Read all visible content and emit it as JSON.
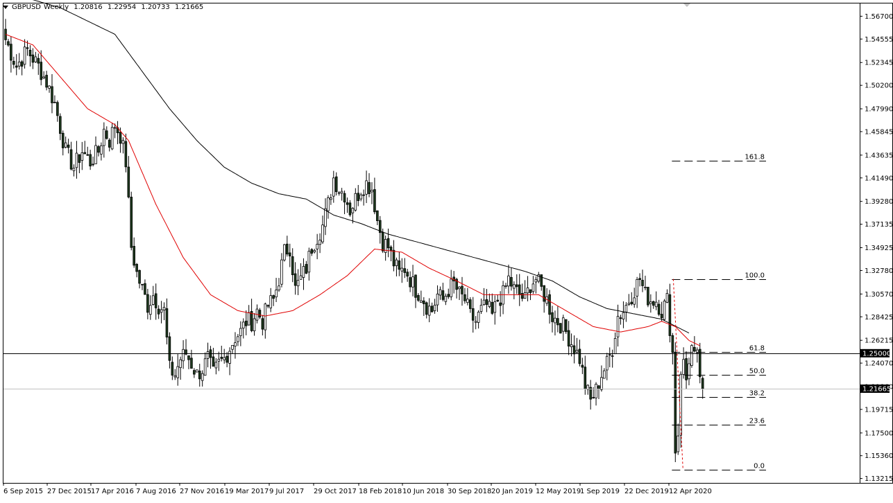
{
  "header": {
    "symbol": "GBPUSD",
    "timeframe": "Weekly",
    "open": "1.20816",
    "high": "1.22954",
    "low": "1.20733",
    "close": "1.21665"
  },
  "colors": {
    "background": "#ffffff",
    "candle_bull": "#ffffff",
    "candle_bear": "#1e3a1e",
    "ma_long": "#000000",
    "ma_short": "#e00000",
    "fib_lines": "#000000",
    "price_line": "#000000",
    "bid_line": "#c0c0c0"
  },
  "chart_data": {
    "type": "candlestick",
    "symbol": "GBPUSD",
    "timeframe": "Weekly",
    "ylim": [
      1.128,
      1.579
    ],
    "y_ticks": [
      "1.56700",
      "1.54555",
      "1.52345",
      "1.50200",
      "1.47990",
      "1.45845",
      "1.43635",
      "1.41490",
      "1.39280",
      "1.37135",
      "1.34925",
      "1.32780",
      "1.30570",
      "1.28425",
      "1.26215",
      "1.24070",
      "1.21860",
      "1.19715",
      "1.17500",
      "1.15360",
      "1.13215"
    ],
    "x_ticks": [
      "6 Sep 2015",
      "27 Dec 2015",
      "17 Apr 2016",
      "7 Aug 2016",
      "27 Nov 2016",
      "19 Mar 2017",
      "9 Jul 2017",
      "29 Oct 2017",
      "18 Feb 2018",
      "10 Jun 2018",
      "30 Sep 2018",
      "20 Jan 2019",
      "12 May 2019",
      "1 Sep 2019",
      "22 Dec 2019",
      "12 Apr 2020"
    ],
    "close_path": [
      [
        0,
        1.545
      ],
      [
        4,
        1.52
      ],
      [
        8,
        1.535
      ],
      [
        12,
        1.52
      ],
      [
        15,
        1.505
      ],
      [
        18,
        1.485
      ],
      [
        22,
        1.44
      ],
      [
        25,
        1.425
      ],
      [
        28,
        1.44
      ],
      [
        31,
        1.43
      ],
      [
        34,
        1.44
      ],
      [
        36,
        1.46
      ],
      [
        38,
        1.45
      ],
      [
        40,
        1.465
      ],
      [
        42,
        1.455
      ],
      [
        44,
        1.43
      ],
      [
        46,
        1.35
      ],
      [
        48,
        1.325
      ],
      [
        50,
        1.31
      ],
      [
        52,
        1.295
      ],
      [
        54,
        1.305
      ],
      [
        56,
        1.295
      ],
      [
        58,
        1.29
      ],
      [
        60,
        1.235
      ],
      [
        62,
        1.23
      ],
      [
        64,
        1.245
      ],
      [
        66,
        1.25
      ],
      [
        68,
        1.24
      ],
      [
        70,
        1.23
      ],
      [
        72,
        1.235
      ],
      [
        74,
        1.245
      ],
      [
        76,
        1.23
      ],
      [
        78,
        1.24
      ],
      [
        80,
        1.245
      ],
      [
        82,
        1.255
      ],
      [
        84,
        1.265
      ],
      [
        86,
        1.27
      ],
      [
        88,
        1.28
      ],
      [
        90,
        1.28
      ],
      [
        92,
        1.29
      ],
      [
        94,
        1.28
      ],
      [
        96,
        1.295
      ],
      [
        98,
        1.3
      ],
      [
        100,
        1.32
      ],
      [
        102,
        1.345
      ],
      [
        104,
        1.35
      ],
      [
        106,
        1.31
      ],
      [
        108,
        1.32
      ],
      [
        110,
        1.33
      ],
      [
        112,
        1.35
      ],
      [
        114,
        1.36
      ],
      [
        116,
        1.37
      ],
      [
        118,
        1.39
      ],
      [
        120,
        1.415
      ],
      [
        122,
        1.405
      ],
      [
        124,
        1.4
      ],
      [
        126,
        1.385
      ],
      [
        128,
        1.395
      ],
      [
        130,
        1.405
      ],
      [
        132,
        1.41
      ],
      [
        134,
        1.405
      ],
      [
        136,
        1.375
      ],
      [
        138,
        1.355
      ],
      [
        140,
        1.35
      ],
      [
        142,
        1.335
      ],
      [
        144,
        1.325
      ],
      [
        146,
        1.33
      ],
      [
        148,
        1.32
      ],
      [
        150,
        1.31
      ],
      [
        152,
        1.305
      ],
      [
        154,
        1.295
      ],
      [
        156,
        1.29
      ],
      [
        158,
        1.305
      ],
      [
        160,
        1.3
      ],
      [
        162,
        1.31
      ],
      [
        164,
        1.315
      ],
      [
        166,
        1.305
      ],
      [
        168,
        1.3
      ],
      [
        170,
        1.285
      ],
      [
        172,
        1.28
      ],
      [
        174,
        1.29
      ],
      [
        176,
        1.295
      ],
      [
        178,
        1.285
      ],
      [
        180,
        1.3
      ],
      [
        182,
        1.305
      ],
      [
        184,
        1.32
      ],
      [
        186,
        1.31
      ],
      [
        188,
        1.305
      ],
      [
        190,
        1.3
      ],
      [
        192,
        1.315
      ],
      [
        194,
        1.32
      ],
      [
        196,
        1.31
      ],
      [
        198,
        1.3
      ],
      [
        200,
        1.285
      ],
      [
        202,
        1.28
      ],
      [
        204,
        1.275
      ],
      [
        206,
        1.265
      ],
      [
        208,
        1.255
      ],
      [
        210,
        1.245
      ],
      [
        212,
        1.22
      ],
      [
        214,
        1.205
      ],
      [
        216,
        1.215
      ],
      [
        218,
        1.23
      ],
      [
        220,
        1.24
      ],
      [
        222,
        1.255
      ],
      [
        224,
        1.285
      ],
      [
        226,
        1.29
      ],
      [
        228,
        1.3
      ],
      [
        230,
        1.31
      ],
      [
        232,
        1.32
      ],
      [
        234,
        1.305
      ],
      [
        236,
        1.3
      ],
      [
        238,
        1.3
      ],
      [
        240,
        1.29
      ],
      [
        242,
        1.3
      ],
      [
        244,
        1.25
      ],
      [
        245,
        1.16
      ],
      [
        246,
        1.175
      ],
      [
        247,
        1.235
      ],
      [
        248,
        1.24
      ],
      [
        249,
        1.225
      ],
      [
        250,
        1.245
      ],
      [
        251,
        1.255
      ],
      [
        252,
        1.245
      ],
      [
        253,
        1.245
      ],
      [
        254,
        1.23
      ],
      [
        255,
        1.2167
      ]
    ],
    "series": [
      {
        "name": "",
        "type": "moving_average",
        "points": [
          [
            0,
            1.59
          ],
          [
            20,
            1.575
          ],
          [
            40,
            1.55
          ],
          [
            50,
            1.515
          ],
          [
            60,
            1.48
          ],
          [
            70,
            1.45
          ],
          [
            80,
            1.425
          ],
          [
            90,
            1.41
          ],
          [
            100,
            1.4
          ],
          [
            110,
            1.395
          ],
          [
            120,
            1.38
          ],
          [
            130,
            1.372
          ],
          [
            140,
            1.362
          ],
          [
            150,
            1.355
          ],
          [
            160,
            1.348
          ],
          [
            170,
            1.341
          ],
          [
            180,
            1.334
          ],
          [
            190,
            1.327
          ],
          [
            200,
            1.318
          ],
          [
            210,
            1.303
          ],
          [
            220,
            1.292
          ],
          [
            230,
            1.287
          ],
          [
            240,
            1.282
          ],
          [
            250,
            1.269
          ]
        ]
      },
      {
        "name": "",
        "type": "moving_average",
        "points": [
          [
            0,
            1.55
          ],
          [
            10,
            1.54
          ],
          [
            20,
            1.51
          ],
          [
            30,
            1.48
          ],
          [
            40,
            1.465
          ],
          [
            45,
            1.45
          ],
          [
            55,
            1.39
          ],
          [
            65,
            1.34
          ],
          [
            75,
            1.305
          ],
          [
            85,
            1.29
          ],
          [
            95,
            1.285
          ],
          [
            105,
            1.29
          ],
          [
            115,
            1.305
          ],
          [
            125,
            1.323
          ],
          [
            135,
            1.348
          ],
          [
            145,
            1.345
          ],
          [
            155,
            1.33
          ],
          [
            165,
            1.318
          ],
          [
            175,
            1.305
          ],
          [
            185,
            1.305
          ],
          [
            195,
            1.305
          ],
          [
            205,
            1.29
          ],
          [
            215,
            1.275
          ],
          [
            225,
            1.27
          ],
          [
            235,
            1.275
          ],
          [
            240,
            1.28
          ],
          [
            245,
            1.275
          ],
          [
            250,
            1.262
          ],
          [
            254,
            1.257
          ]
        ]
      }
    ],
    "horizontal_lines": [
      {
        "label": "1.25000",
        "value": 1.25,
        "style": "solid"
      },
      {
        "label": "1.21665",
        "value": 1.21665,
        "style": "bid"
      }
    ],
    "fibonacci": {
      "levels": [
        {
          "label": "161.8",
          "value": 1.4308
        },
        {
          "label": "100.0",
          "value": 1.3198
        },
        {
          "label": "61.8",
          "value": 1.2512
        },
        {
          "label": "50.0",
          "value": 1.2299
        },
        {
          "label": "38.2",
          "value": 1.2087
        },
        {
          "label": "23.6",
          "value": 1.1825
        },
        {
          "label": "0.0",
          "value": 1.1401
        }
      ],
      "x_start": 244,
      "x_end": 256
    },
    "grid": false
  }
}
